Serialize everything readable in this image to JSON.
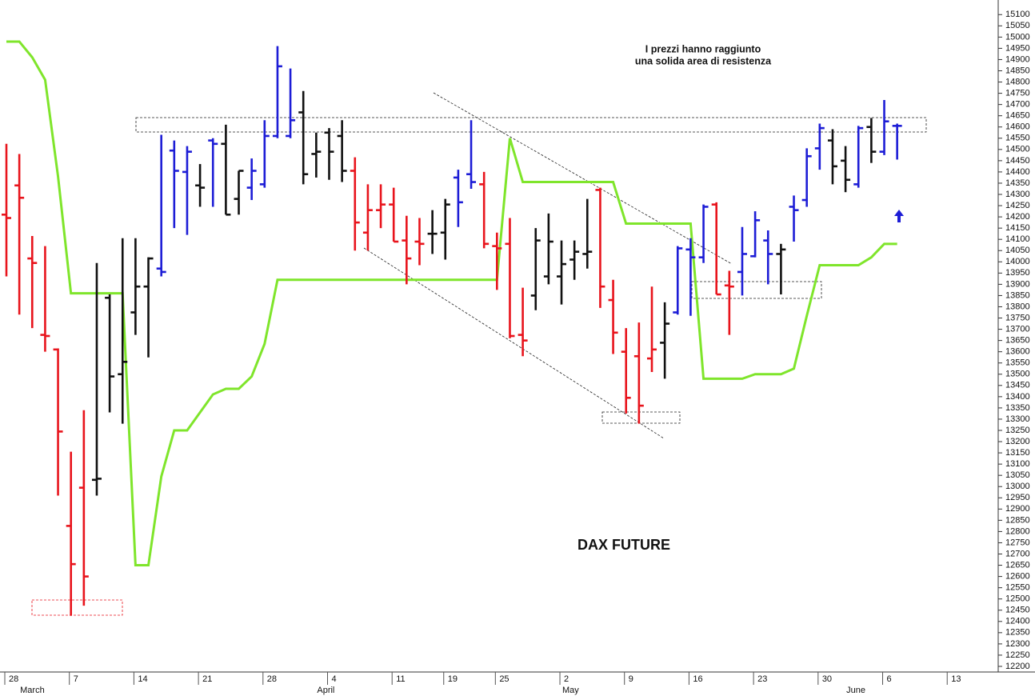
{
  "chart_data": {
    "type": "ohlc",
    "categories": [
      "28",
      null,
      null,
      null,
      null,
      "7",
      null,
      null,
      null,
      null,
      "14",
      null,
      null,
      null,
      null,
      "21",
      null,
      null,
      null,
      null,
      "28",
      null,
      null,
      null,
      null,
      "4",
      null,
      null,
      null,
      null,
      "11",
      null,
      null,
      null,
      "19",
      null,
      null,
      null,
      "25",
      null,
      null,
      null,
      null,
      "2",
      null,
      null,
      null,
      null,
      "9",
      null,
      null,
      null,
      null,
      "16",
      null,
      null,
      null,
      null,
      "23",
      null,
      null,
      null,
      null,
      "30",
      null,
      null,
      null,
      null,
      "6",
      null,
      null,
      null,
      null,
      "13"
    ],
    "months": [
      null,
      "March",
      null,
      null,
      null,
      null,
      null,
      null,
      null,
      null,
      null,
      null,
      null,
      null,
      null,
      null,
      null,
      null,
      null,
      null,
      null,
      null,
      null,
      null,
      "April",
      null,
      null,
      null,
      null,
      null,
      null,
      null,
      null,
      null,
      null,
      null,
      null,
      null,
      null,
      null,
      null,
      null,
      null,
      "May",
      null,
      null,
      null,
      null,
      null,
      null,
      null,
      null,
      null,
      null,
      null,
      null,
      null,
      null,
      null,
      null,
      null,
      null,
      null,
      null,
      null,
      "June",
      null,
      null,
      null,
      null,
      null,
      null,
      null,
      null
    ],
    "open": [
      14210,
      14340,
      14015,
      13675,
      13610,
      12825,
      12995,
      13030,
      13840,
      13500,
      13775,
      13890,
      13970,
      14495,
      14400,
      14340,
      14540,
      14525,
      14280,
      14330,
      14345,
      14560,
      14560,
      14665,
      14480,
      14575,
      14560,
      14405,
      14130,
      14230,
      14255,
      14095,
      14090,
      14125,
      14130,
      14375,
      14390,
      14345,
      14070,
      14080,
      13675,
      13850,
      13935,
      13935,
      14010,
      14035,
      14320,
      13830,
      13600,
      13580,
      13570,
      13640,
      13775,
      14055,
      14020,
      14255,
      13895,
      13955,
      14025,
      14095,
      14035,
      14245,
      14275,
      14505,
      14540,
      14450,
      14345,
      14600,
      14490,
      14605,
      null,
      null,
      null,
      null
    ],
    "high": [
      14525,
      14480,
      14115,
      14070,
      13615,
      13155,
      13340,
      13995,
      13855,
      14105,
      14105,
      14020,
      14565,
      14540,
      14515,
      14435,
      14550,
      14610,
      14405,
      14460,
      14630,
      14960,
      14860,
      14760,
      14575,
      14595,
      14630,
      14465,
      14345,
      14345,
      14330,
      14205,
      14195,
      14230,
      14280,
      14410,
      14630,
      14400,
      14130,
      14195,
      13885,
      14150,
      14215,
      14095,
      14095,
      14280,
      14330,
      13920,
      13705,
      13730,
      13890,
      13820,
      14070,
      14105,
      14255,
      14265,
      13960,
      14155,
      14225,
      14140,
      14080,
      14295,
      14505,
      14615,
      14590,
      14515,
      14605,
      14640,
      14720,
      14615,
      null,
      null,
      null,
      null
    ],
    "low": [
      13935,
      13765,
      13705,
      13600,
      12960,
      12425,
      12470,
      12960,
      13330,
      13280,
      13675,
      13575,
      13935,
      14150,
      14120,
      14245,
      14245,
      14210,
      14210,
      14275,
      14330,
      14550,
      14550,
      14345,
      14375,
      14365,
      14355,
      14050,
      14050,
      14150,
      14090,
      13900,
      13985,
      14035,
      14010,
      14155,
      14325,
      14060,
      13875,
      13660,
      13580,
      13785,
      13900,
      13810,
      13920,
      13970,
      13795,
      13590,
      13325,
      13280,
      13510,
      13480,
      13765,
      13760,
      13995,
      13855,
      13675,
      13850,
      14020,
      13900,
      13855,
      14090,
      14245,
      14410,
      14345,
      14310,
      14330,
      14440,
      14475,
      14455,
      null,
      null,
      null,
      null
    ],
    "close": [
      14195,
      14285,
      13995,
      13670,
      13245,
      12655,
      12600,
      13035,
      13490,
      13555,
      13890,
      14015,
      13955,
      14405,
      14490,
      14330,
      14525,
      14210,
      14405,
      14405,
      14560,
      14870,
      14630,
      14390,
      14490,
      14490,
      14405,
      14175,
      14230,
      14255,
      14090,
      14015,
      14080,
      14125,
      14255,
      14265,
      14355,
      14080,
      14060,
      13670,
      13650,
      14095,
      14090,
      13990,
      14045,
      14045,
      13890,
      13685,
      13395,
      13360,
      13610,
      13725,
      14060,
      14020,
      14245,
      13855,
      13890,
      14035,
      14185,
      14035,
      14055,
      14230,
      14470,
      14595,
      14425,
      14365,
      14595,
      14490,
      14625,
      14605,
      null,
      null,
      null,
      null
    ],
    "colors": [
      "#e8141c",
      "#e8141c",
      "#e8141c",
      "#e8141c",
      "#e8141c",
      "#e8141c",
      "#e8141c",
      "#111111",
      "#111111",
      "#111111",
      "#111111",
      "#111111",
      "#1d1dd6",
      "#1d1dd6",
      "#1d1dd6",
      "#111111",
      "#1d1dd6",
      "#111111",
      "#111111",
      "#1d1dd6",
      "#1d1dd6",
      "#1d1dd6",
      "#1d1dd6",
      "#111111",
      "#111111",
      "#111111",
      "#111111",
      "#e8141c",
      "#e8141c",
      "#e8141c",
      "#e8141c",
      "#e8141c",
      "#e8141c",
      "#111111",
      "#111111",
      "#1d1dd6",
      "#1d1dd6",
      "#e8141c",
      "#e8141c",
      "#e8141c",
      "#e8141c",
      "#111111",
      "#111111",
      "#111111",
      "#111111",
      "#111111",
      "#e8141c",
      "#e8141c",
      "#e8141c",
      "#e8141c",
      "#e8141c",
      "#111111",
      "#1d1dd6",
      "#1d1dd6",
      "#1d1dd6",
      "#e8141c",
      "#e8141c",
      "#1d1dd6",
      "#1d1dd6",
      "#1d1dd6",
      "#111111",
      "#1d1dd6",
      "#1d1dd6",
      "#1d1dd6",
      "#111111",
      "#111111",
      "#1d1dd6",
      "#111111",
      "#1d1dd6",
      "#1d1dd6",
      null,
      null,
      null,
      null
    ],
    "overlay": {
      "type": "line",
      "color": "#7fe52b",
      "values": [
        14980,
        14980,
        14910,
        14810,
        14380,
        13860,
        13860,
        13860,
        13860,
        13860,
        12650,
        12650,
        13045,
        13250,
        13250,
        13330,
        13410,
        13435,
        13435,
        13490,
        13635,
        13920,
        13920,
        13920,
        13920,
        13920,
        13920,
        13920,
        13920,
        13920,
        13920,
        13920,
        13920,
        13920,
        13920,
        13920,
        13920,
        13920,
        13920,
        14550,
        14355,
        14355,
        14355,
        14355,
        14355,
        14355,
        14355,
        14355,
        14170,
        14170,
        14170,
        14170,
        14170,
        14170,
        13480,
        13480,
        13480,
        13480,
        13500,
        13500,
        13500,
        13525,
        13760,
        13985,
        13985,
        13985,
        13985,
        14020,
        14080,
        14080,
        null,
        null,
        null,
        null
      ]
    },
    "ylim": [
      12175,
      15165
    ],
    "yticks": [
      12200,
      12250,
      12300,
      12350,
      12400,
      12450,
      12500,
      12550,
      12600,
      12650,
      12700,
      12750,
      12800,
      12850,
      12900,
      12950,
      13000,
      13050,
      13100,
      13150,
      13200,
      13250,
      13300,
      13350,
      13400,
      13450,
      13500,
      13550,
      13600,
      13650,
      13700,
      13750,
      13800,
      13850,
      13900,
      13950,
      14000,
      14050,
      14100,
      14150,
      14200,
      14250,
      14300,
      14350,
      14400,
      14450,
      14500,
      14550,
      14600,
      14650,
      14700,
      14750,
      14800,
      14850,
      14900,
      14950,
      15000,
      15050,
      15100
    ],
    "annotations": [
      "I prezzi hanno raggiunto",
      "una solida area di resistenza"
    ],
    "label": "DAX FUTURE"
  }
}
